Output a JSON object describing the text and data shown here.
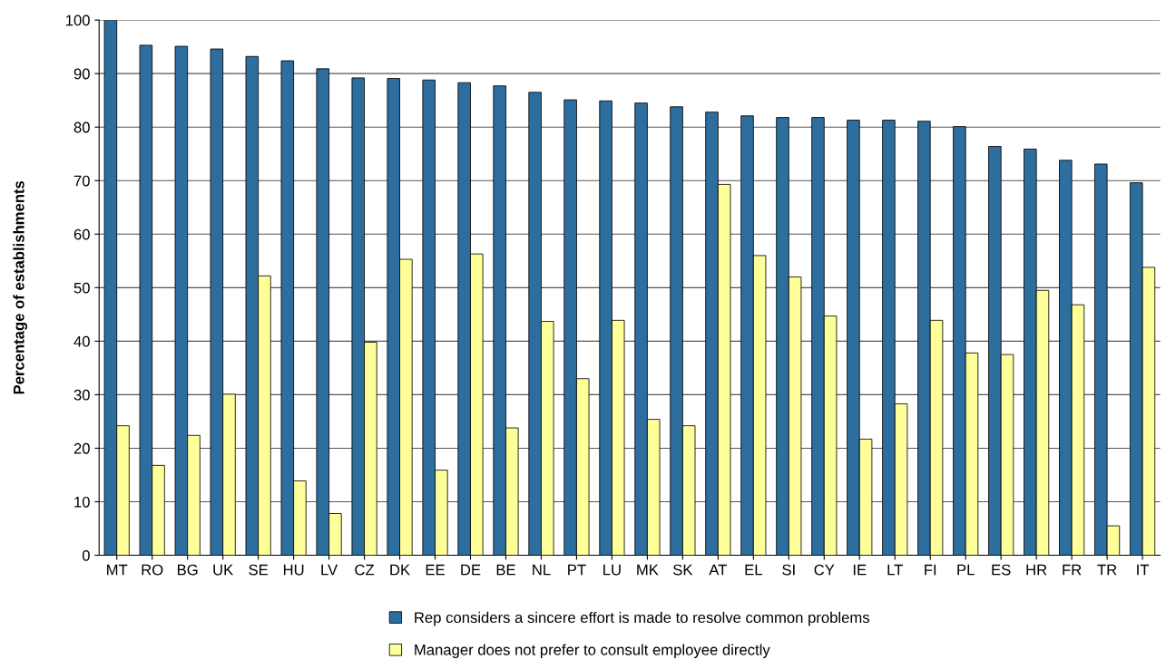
{
  "chart_data": {
    "type": "bar",
    "ylabel": "Percentage of establishments",
    "categories": [
      "MT",
      "RO",
      "BG",
      "UK",
      "SE",
      "HU",
      "LV",
      "CZ",
      "DK",
      "EE",
      "DE",
      "BE",
      "NL",
      "PT",
      "LU",
      "MK",
      "SK",
      "AT",
      "EL",
      "SI",
      "CY",
      "IE",
      "LT",
      "FI",
      "PL",
      "ES",
      "HR",
      "FR",
      "TR",
      "IT"
    ],
    "series": [
      {
        "name": "Rep considers a sincere effort is made to resolve common problems",
        "color": "#2e6e9e",
        "values": [
          100,
          95.3,
          95.1,
          94.6,
          93.2,
          92.4,
          90.9,
          89.2,
          89.1,
          88.8,
          88.3,
          87.7,
          86.5,
          85.1,
          84.9,
          84.5,
          83.8,
          82.8,
          82.1,
          81.8,
          81.8,
          81.3,
          81.3,
          81.1,
          80.1,
          76.4,
          75.9,
          73.8,
          73.1,
          69.6
        ]
      },
      {
        "name": "Manager does not prefer to consult employee directly",
        "color": "#ffff99",
        "values": [
          24.2,
          16.8,
          22.4,
          30.1,
          52.2,
          13.9,
          7.8,
          39.8,
          55.3,
          15.9,
          56.3,
          23.8,
          43.7,
          33.0,
          43.9,
          25.4,
          24.2,
          69.3,
          56.0,
          52.0,
          44.7,
          21.7,
          28.3,
          43.9,
          37.8,
          37.5,
          49.5,
          46.8,
          5.5,
          53.8
        ]
      }
    ],
    "ylim": [
      0,
      100
    ],
    "yticks": [
      0,
      10,
      20,
      30,
      40,
      50,
      60,
      70,
      80,
      90,
      100
    ],
    "grid": "y",
    "legend": "bottom"
  }
}
